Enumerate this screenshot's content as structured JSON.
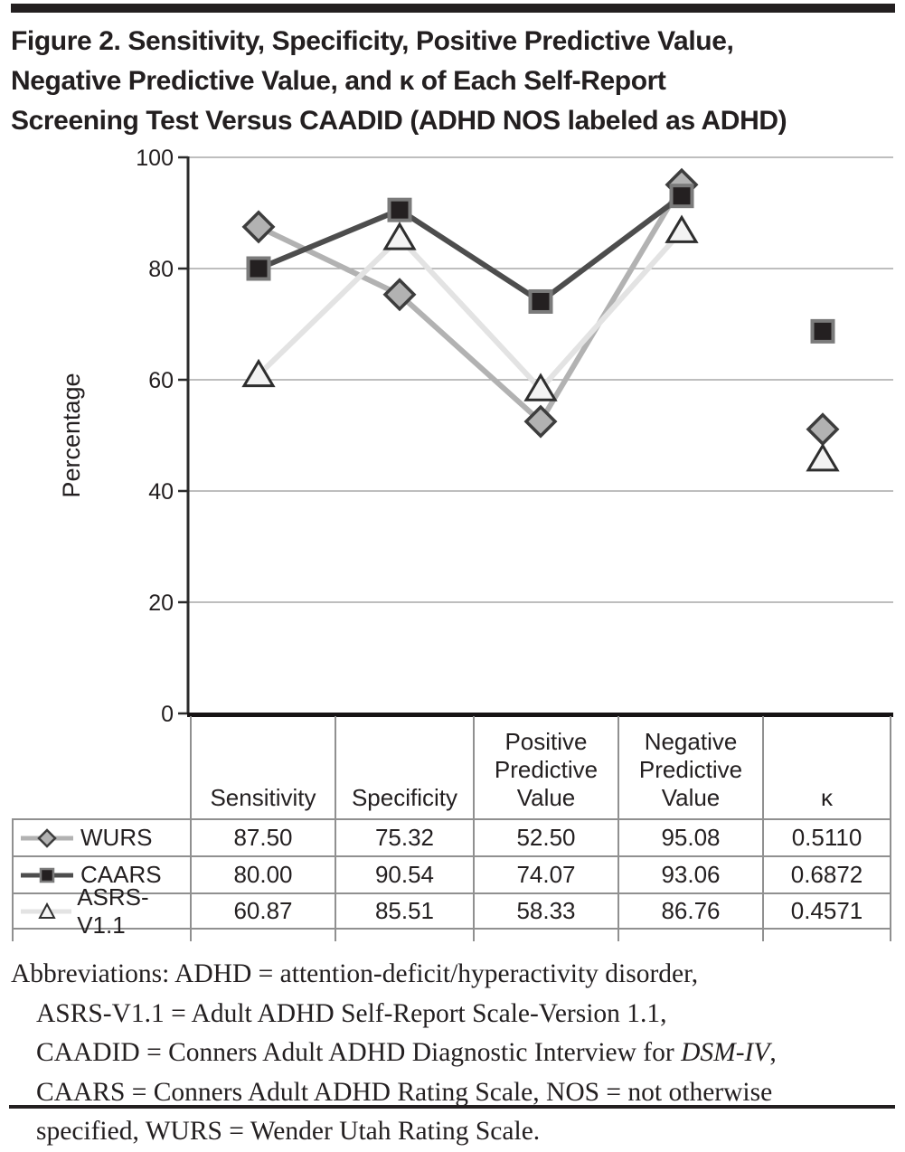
{
  "figure_title": {
    "lines": [
      "Figure 2. Sensitivity, Specificity, Positive Predictive Value,",
      "Negative Predictive Value, and κ of Each Self-Report",
      "Screening Test Versus CAADID (ADHD NOS labeled as ADHD)"
    ]
  },
  "chart_data": {
    "type": "line",
    "title": "",
    "xlabel": "",
    "ylabel": "Percentage",
    "ylim": [
      0,
      100
    ],
    "yticks": [
      0,
      20,
      40,
      60,
      80,
      100
    ],
    "grid": "horizontal",
    "legend_position": "table-left-column",
    "categories": [
      "Sensitivity",
      "Specificity",
      "Positive Predictive Value",
      "Negative Predictive Value",
      "κ"
    ],
    "note": "κ values are plotted ×100 as isolated markers; connecting lines span only the first four categories",
    "line_connects_first_n": 4,
    "series": [
      {
        "name": "WURS",
        "marker": "diamond",
        "line_color": "#b2b2b2",
        "marker_fill": "#b2b2b2",
        "marker_stroke": "#3d3d3d",
        "values": [
          87.5,
          75.32,
          52.5,
          95.08,
          51.1
        ]
      },
      {
        "name": "CAARS",
        "marker": "square",
        "line_color": "#4d4d4d",
        "marker_fill": "#242021",
        "marker_stroke": "#7b7b7b",
        "values": [
          80.0,
          90.54,
          74.07,
          93.06,
          68.72
        ]
      },
      {
        "name": "ASRS-V1.1",
        "marker": "triangle",
        "line_color": "#e3e3e3",
        "marker_fill": "#f3f3f3",
        "marker_stroke": "#2e2e2e",
        "values": [
          60.87,
          85.51,
          58.33,
          86.76,
          45.71
        ]
      }
    ]
  },
  "table": {
    "headers": [
      "",
      "Sensitivity",
      "Specificity",
      "Positive\nPredictive\nValue",
      "Negative\nPredictive\nValue",
      "κ"
    ],
    "rows": [
      {
        "label": "WURS",
        "values": [
          "87.50",
          "75.32",
          "52.50",
          "95.08",
          "0.5110"
        ]
      },
      {
        "label": "CAARS",
        "values": [
          "80.00",
          "90.54",
          "74.07",
          "93.06",
          "0.6872"
        ]
      },
      {
        "label": "ASRS-V1.1",
        "values": [
          "60.87",
          "85.51",
          "58.33",
          "86.76",
          "0.4571"
        ]
      }
    ]
  },
  "abbreviations": {
    "lines": [
      [
        {
          "text": "Abbreviations: ADHD = attention-deficit/hyperactivity disorder,",
          "italic": false
        }
      ],
      [
        {
          "text": "ASRS-V1.1 = Adult ADHD Self-Report Scale-Version 1.1,",
          "italic": false
        }
      ],
      [
        {
          "text": "CAADID = Conners Adult ADHD Diagnostic Interview for ",
          "italic": false
        },
        {
          "text": "DSM-IV",
          "italic": true
        },
        {
          "text": ",",
          "italic": false
        }
      ],
      [
        {
          "text": "CAARS = Conners Adult ADHD Rating Scale, NOS = not otherwise",
          "italic": false
        }
      ],
      [
        {
          "text": "specified, WURS = Wender Utah Rating Scale.",
          "italic": false
        }
      ]
    ]
  },
  "colors": {
    "rule": "#231f20",
    "grid": "#a8a8a8",
    "axis": "#2b2b2b",
    "x_axis_heavy": "#161314",
    "table_border": "#909090",
    "text": "#231f20"
  }
}
